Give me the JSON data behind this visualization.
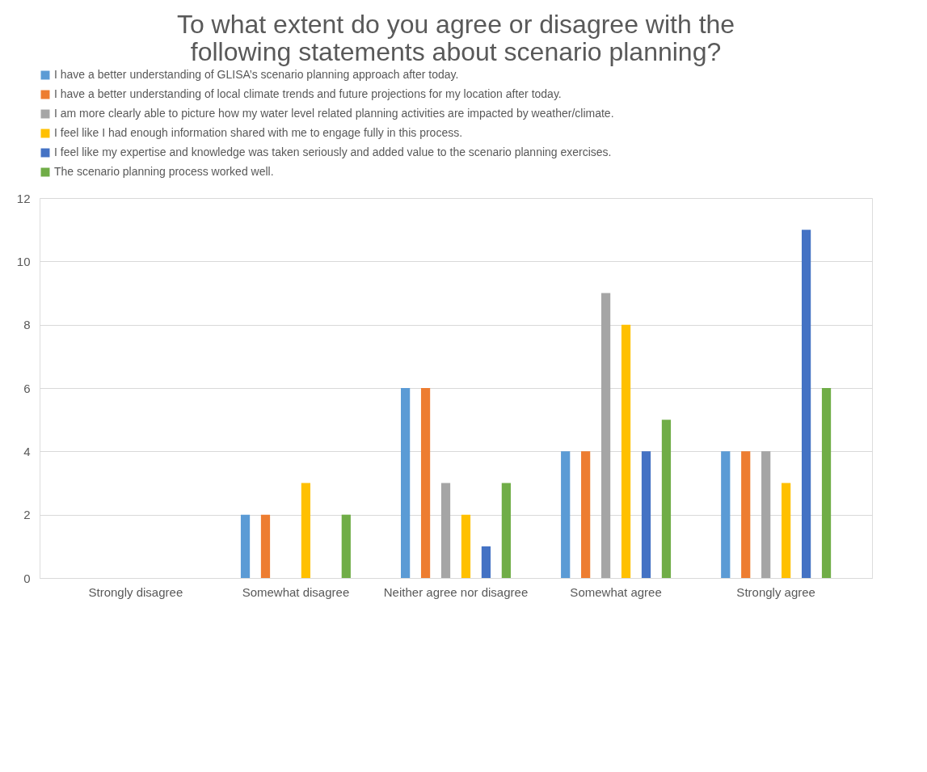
{
  "chart_data": {
    "type": "bar",
    "title": "To what extent do you agree or disagree with the following statements about scenario planning?",
    "categories": [
      "Strongly disagree",
      "Somewhat disagree",
      "Neither agree nor disagree",
      "Somewhat agree",
      "Strongly agree"
    ],
    "series": [
      {
        "name": "I have a better understanding of GLISA’s scenario planning approach after today.",
        "color": "#5b9bd5",
        "values": [
          0,
          2,
          6,
          4,
          4
        ]
      },
      {
        "name": "I have a better understanding of local climate trends and future projections for my location after today.",
        "color": "#ed7d31",
        "values": [
          0,
          2,
          6,
          4,
          4
        ]
      },
      {
        "name": "I am more clearly able to picture how my water level related planning activities are impacted by weather/climate.",
        "color": "#a5a5a5",
        "values": [
          0,
          0,
          3,
          9,
          4
        ]
      },
      {
        "name": "I feel like I had enough information shared with me to engage fully in this process.",
        "color": "#ffc000",
        "values": [
          0,
          3,
          2,
          8,
          3
        ]
      },
      {
        "name": "I feel like my expertise and knowledge was taken seriously and added value to the scenario planning exercises.",
        "color": "#4472c4",
        "values": [
          0,
          0,
          1,
          4,
          11
        ]
      },
      {
        "name": "The scenario planning process worked well.",
        "color": "#70ad47",
        "values": [
          0,
          2,
          3,
          5,
          6
        ]
      }
    ],
    "ylim": [
      0,
      12
    ],
    "yticks": [
      0,
      2,
      4,
      6,
      8,
      10,
      12
    ],
    "grid": "y",
    "legend": "top"
  }
}
